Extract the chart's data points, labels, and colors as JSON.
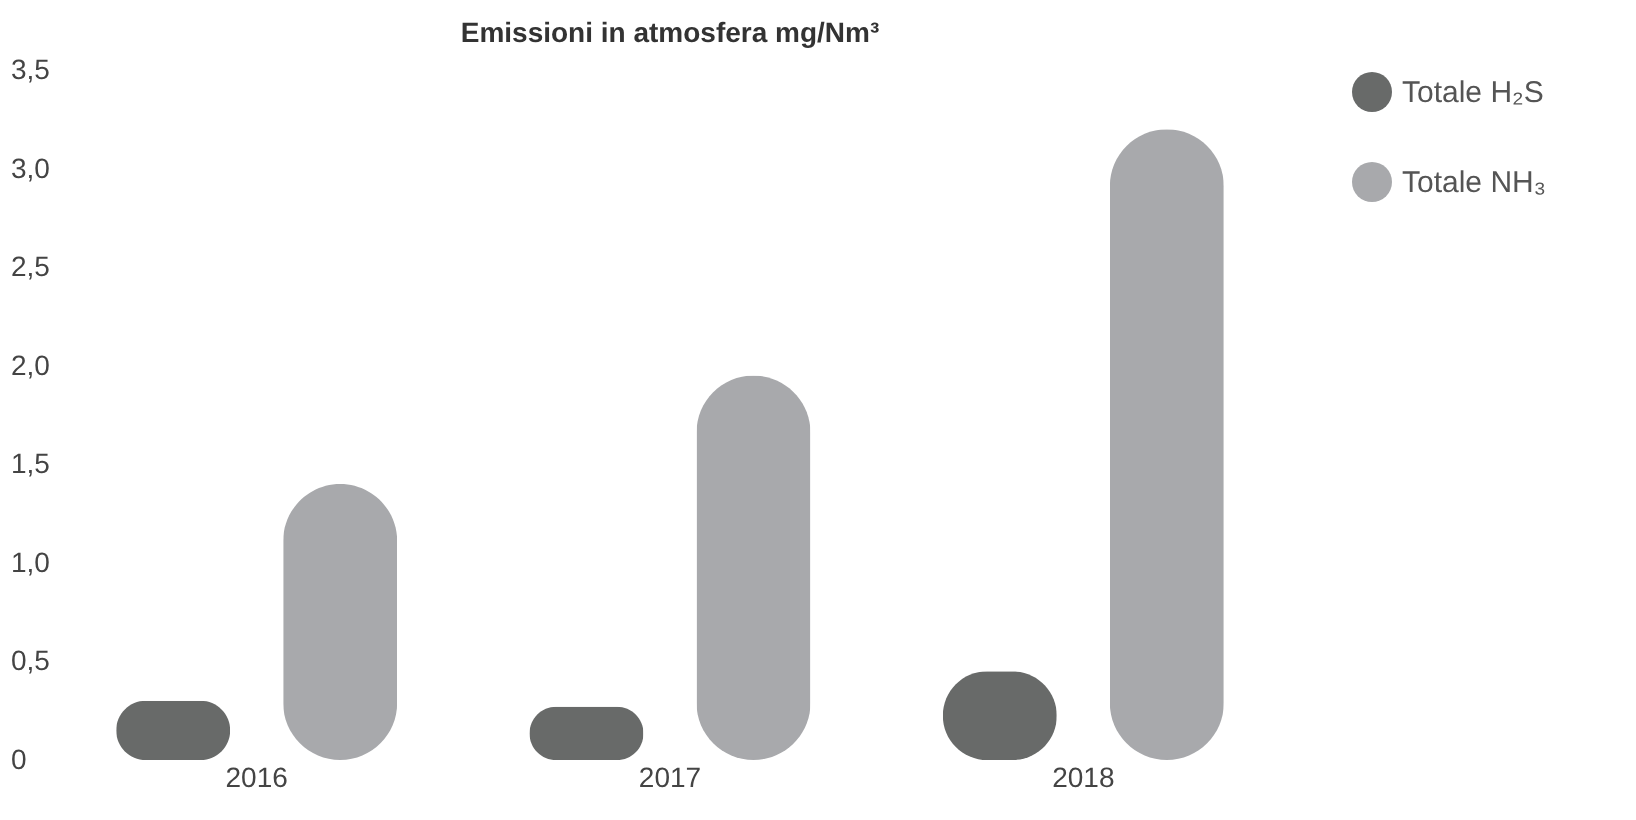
{
  "chart_data": {
    "type": "bar",
    "title": "Emissioni in atmosfera mg/Nm³",
    "categories": [
      "2016",
      "2017",
      "2018"
    ],
    "series": [
      {
        "name": "Totale H₂S",
        "color": "#686a69",
        "values": [
          0.3,
          0.27,
          0.45
        ]
      },
      {
        "name": "Totale NH₃",
        "color": "#a8a9ac",
        "values": [
          1.4,
          1.95,
          3.2
        ]
      }
    ],
    "ylim": [
      0,
      3.5
    ],
    "yticks": [
      0,
      {
        "value": 0.5,
        "label": "0,5"
      },
      {
        "value": 1.0,
        "label": "1,0"
      },
      {
        "value": 1.5,
        "label": "1,5"
      },
      {
        "value": 2.0,
        "label": "2,0"
      },
      {
        "value": 2.5,
        "label": "2,5"
      },
      {
        "value": 3.0,
        "label": "3,0"
      },
      {
        "value": 3.5,
        "label": "3,5"
      }
    ],
    "grid": false,
    "legend": "right"
  }
}
